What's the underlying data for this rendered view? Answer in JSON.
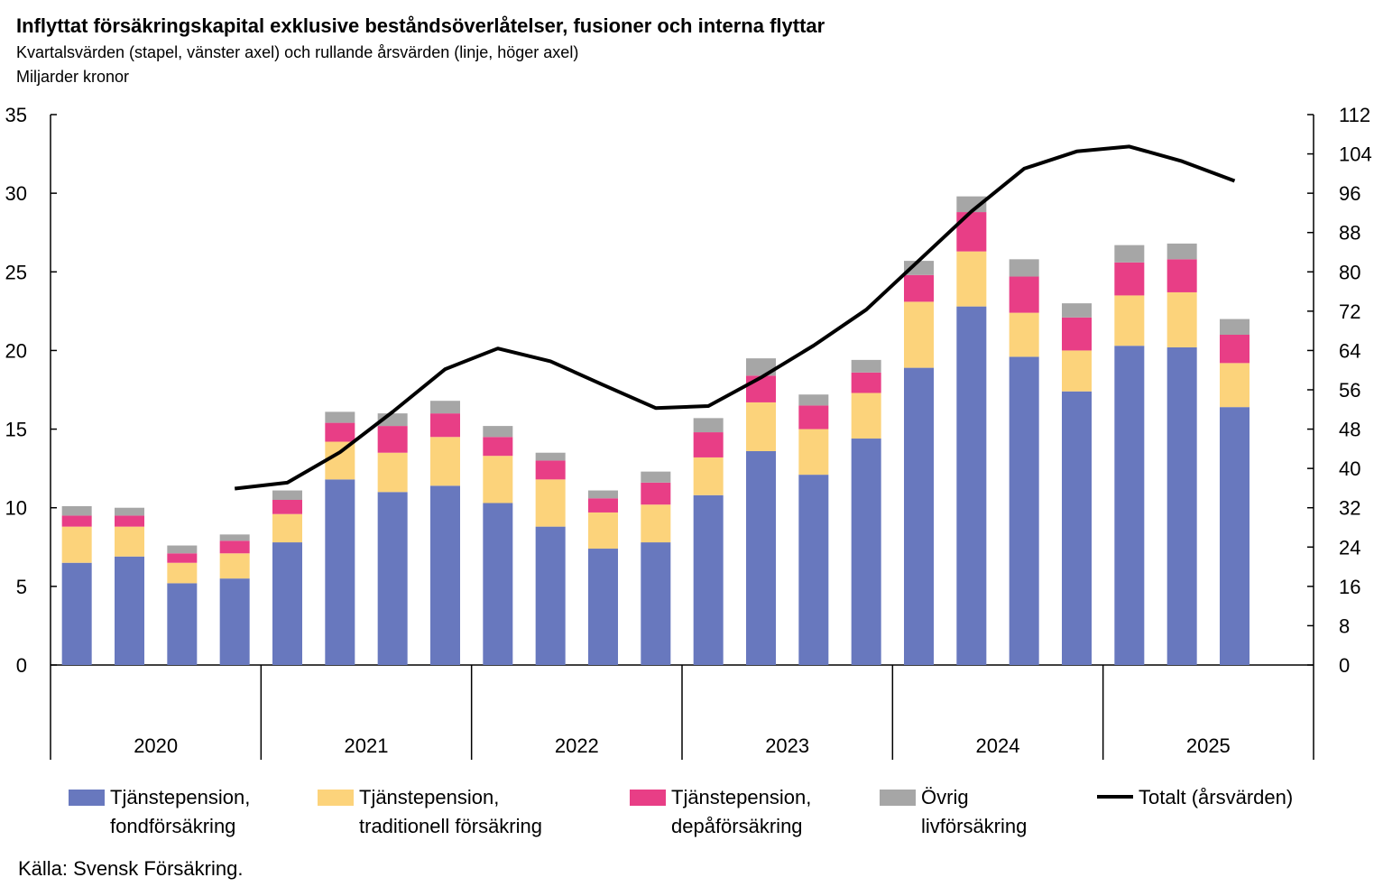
{
  "title": "Inflyttat försäkringskapital exklusive beståndsöverlåtelser, fusioner och interna flyttar",
  "subtitle": "Kvartalsvärden (stapel, vänster axel) och rullande årsvärden (linje,  höger axel)",
  "unit": "Miljarder kronor",
  "source": "Källa: Svensk Försäkring.",
  "colors": {
    "fond": "#6878be",
    "trad": "#fcd37b",
    "depa": "#e83e86",
    "ovrig": "#a6a6a6",
    "total": "#000000"
  },
  "legend": [
    {
      "key": "fond",
      "label": "Tjänstepension,\nfondförsäkring"
    },
    {
      "key": "trad",
      "label": "Tjänstepension,\ntraditionell försäkring"
    },
    {
      "key": "depa",
      "label": "Tjänstepension,\ndepåförsäkring"
    },
    {
      "key": "ovrig",
      "label": "Övrig\nlivförsäkring"
    },
    {
      "key": "total",
      "label": "Totalt (årsvärden)"
    }
  ],
  "chart_data": {
    "type": "bar",
    "stacked": true,
    "years": [
      "2020",
      "2021",
      "2022",
      "2023",
      "2024",
      "2025"
    ],
    "quarters_per_year": 4,
    "y_left": {
      "min": 0,
      "max": 35,
      "ticks": [
        0,
        5,
        10,
        15,
        20,
        25,
        30,
        35
      ]
    },
    "y_right": {
      "min": 0,
      "max": 112,
      "ticks": [
        0,
        8,
        16,
        24,
        32,
        40,
        48,
        56,
        64,
        72,
        80,
        88,
        96,
        104,
        112
      ]
    },
    "series": [
      {
        "key": "fond",
        "name": "Tjänstepension, fondförsäkring",
        "axis": "left",
        "values": [
          6.5,
          6.9,
          5.2,
          5.5,
          7.8,
          11.8,
          11.0,
          11.4,
          10.3,
          8.8,
          7.4,
          7.8,
          10.8,
          13.6,
          12.1,
          14.4,
          18.9,
          22.8,
          19.6,
          17.4,
          20.3,
          20.2,
          16.4
        ]
      },
      {
        "key": "trad",
        "name": "Tjänstepension, traditionell försäkring",
        "axis": "left",
        "values": [
          2.3,
          1.9,
          1.3,
          1.6,
          1.8,
          2.4,
          2.5,
          3.1,
          3.0,
          3.0,
          2.3,
          2.4,
          2.4,
          3.1,
          2.9,
          2.9,
          4.2,
          3.5,
          2.8,
          2.6,
          3.2,
          3.5,
          2.8
        ]
      },
      {
        "key": "depa",
        "name": "Tjänstepension, depåförsäkring",
        "axis": "left",
        "values": [
          0.7,
          0.7,
          0.6,
          0.8,
          0.9,
          1.2,
          1.7,
          1.5,
          1.2,
          1.2,
          0.9,
          1.4,
          1.6,
          1.7,
          1.5,
          1.3,
          1.7,
          2.5,
          2.3,
          2.1,
          2.1,
          2.1,
          1.8
        ]
      },
      {
        "key": "ovrig",
        "name": "Övrig livförsäkring",
        "axis": "left",
        "values": [
          0.6,
          0.5,
          0.5,
          0.4,
          0.6,
          0.7,
          0.8,
          0.8,
          0.7,
          0.5,
          0.5,
          0.7,
          0.9,
          1.1,
          0.7,
          0.8,
          0.9,
          1.0,
          1.1,
          0.9,
          1.1,
          1.0,
          1.0
        ]
      },
      {
        "key": "total",
        "name": "Totalt (årsvärden)",
        "type": "line",
        "axis": "right",
        "values": [
          null,
          null,
          null,
          35.9,
          37.1,
          43.3,
          51.5,
          60.2,
          64.4,
          61.8,
          57.0,
          52.3,
          52.7,
          58.5,
          65.0,
          72.3,
          82.3,
          92.3,
          101.0,
          104.5,
          105.5,
          102.5,
          98.5
        ]
      }
    ]
  }
}
